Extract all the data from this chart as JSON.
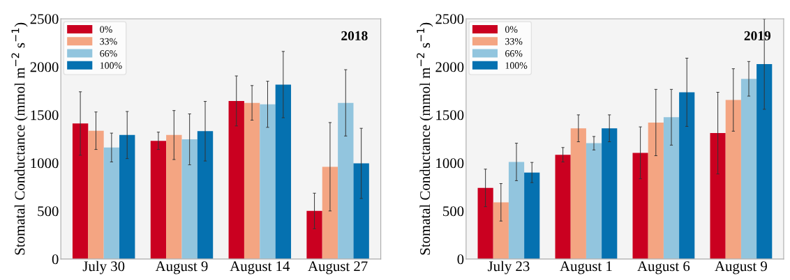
{
  "chart_data": [
    {
      "type": "bar",
      "title": "2018",
      "ylabel": "Stomatal Conductance (mmol m$^{−2}$ s$^{−1}$)",
      "categories": [
        "July 30",
        "August 9",
        "August 14",
        "August 27"
      ],
      "ylim": [
        0,
        2500
      ],
      "yticks": [
        0,
        500,
        1000,
        1500,
        2000,
        2500
      ],
      "legend": "top left",
      "grid": false,
      "series": [
        {
          "name": "0%",
          "color": "#ca0020",
          "values": [
            1410,
            1230,
            1645,
            500
          ],
          "errors": [
            330,
            90,
            260,
            185
          ]
        },
        {
          "name": "33%",
          "color": "#f4a582",
          "values": [
            1335,
            1290,
            1625,
            960
          ],
          "errors": [
            195,
            255,
            180,
            460
          ]
        },
        {
          "name": "66%",
          "color": "#92c5de",
          "values": [
            1160,
            1245,
            1610,
            1625
          ],
          "errors": [
            150,
            265,
            240,
            345
          ]
        },
        {
          "name": "100%",
          "color": "#0571b0",
          "values": [
            1290,
            1330,
            1815,
            995
          ],
          "errors": [
            245,
            310,
            345,
            365
          ]
        }
      ]
    },
    {
      "type": "bar",
      "title": "2019",
      "ylabel": "Stomatal Conductance (mmol m$^{−2}$ s$^{−1}$)",
      "categories": [
        "July 23",
        "August 1",
        "August 6",
        "August 9"
      ],
      "ylim": [
        0,
        2500
      ],
      "yticks": [
        0,
        500,
        1000,
        1500,
        2000,
        2500
      ],
      "legend": "top left",
      "grid": false,
      "series": [
        {
          "name": "0%",
          "color": "#ca0020",
          "values": [
            740,
            1085,
            1105,
            1310
          ],
          "errors": [
            195,
            75,
            270,
            425
          ]
        },
        {
          "name": "33%",
          "color": "#f4a582",
          "values": [
            590,
            1360,
            1420,
            1655
          ],
          "errors": [
            195,
            140,
            345,
            325
          ]
        },
        {
          "name": "66%",
          "color": "#92c5de",
          "values": [
            1010,
            1205,
            1475,
            1875
          ],
          "errors": [
            195,
            70,
            290,
            180
          ]
        },
        {
          "name": "100%",
          "color": "#0571b0",
          "values": [
            900,
            1360,
            1735,
            2028
          ],
          "errors": [
            105,
            140,
            355,
            470
          ]
        }
      ]
    }
  ]
}
